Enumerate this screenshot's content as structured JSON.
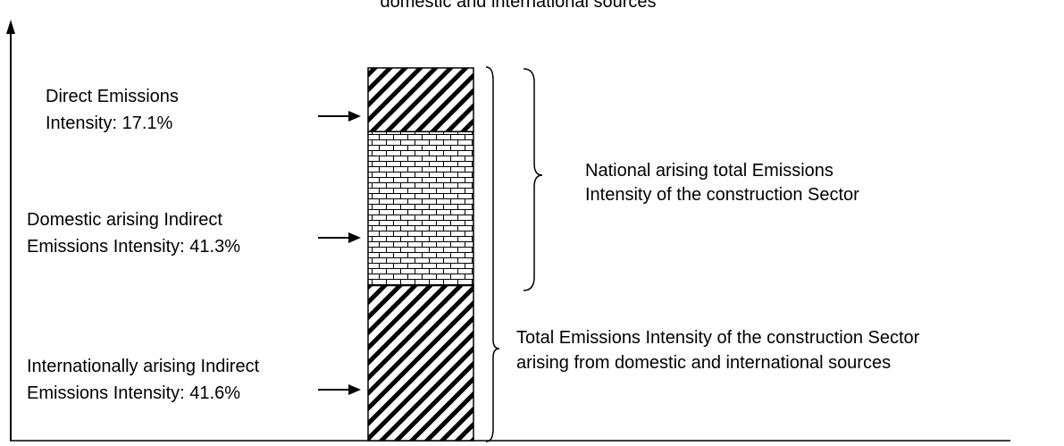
{
  "chart_data": {
    "type": "stacked-bar",
    "title_fragment": "domestic and international sources",
    "segments": [
      {
        "label_lines": [
          "Direct Emissions",
          "Intensity: 17.1%"
        ],
        "value": 17.1,
        "pattern": "diagonal-hatch"
      },
      {
        "label_lines": [
          "Domestic arising Indirect",
          "Emissions Intensity: 41.3%"
        ],
        "value": 41.3,
        "pattern": "brick"
      },
      {
        "label_lines": [
          "Internationally arising Indirect",
          "Emissions Intensity: 41.6%"
        ],
        "value": 41.6,
        "pattern": "diagonal-hatch"
      }
    ],
    "braces": [
      {
        "label_lines": [
          "National arising total Emissions",
          "Intensity of the construction Sector"
        ],
        "spans": [
          "Direct Emissions",
          "Domestic arising Indirect"
        ]
      },
      {
        "label_lines": [
          "Total Emissions Intensity of the construction Sector",
          "arising from domestic and international sources"
        ],
        "spans": [
          "Direct Emissions",
          "Domestic arising Indirect",
          "Internationally arising Indirect"
        ]
      }
    ]
  },
  "colors": {
    "ink": "#000000",
    "background": "#ffffff"
  }
}
